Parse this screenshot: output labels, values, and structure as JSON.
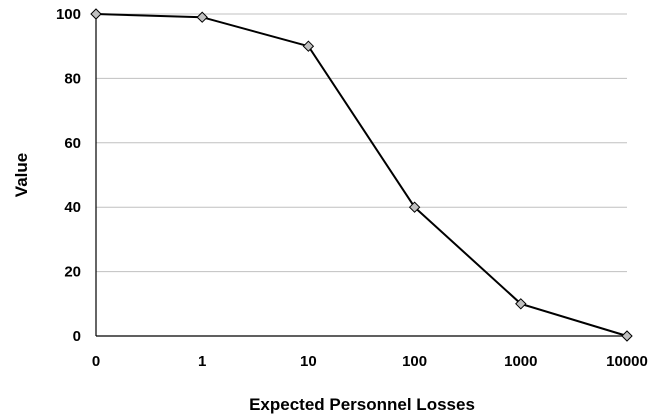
{
  "chart_data": {
    "type": "line",
    "xlabel": "Expected Personnel Losses",
    "ylabel": "Value",
    "x_scale": "categorical",
    "categories": [
      "0",
      "1",
      "10",
      "100",
      "1000",
      "10000"
    ],
    "series": [
      {
        "values": [
          100,
          99,
          90,
          40,
          10,
          0
        ]
      }
    ],
    "ylim": [
      0,
      100
    ],
    "y_ticks": [
      "0",
      "20",
      "40",
      "60",
      "80",
      "100"
    ],
    "grid": true,
    "marker": "diamond",
    "line_color": "#000000",
    "marker_fill": "#c0c0c0",
    "grid_color": "#c0c0c0"
  }
}
